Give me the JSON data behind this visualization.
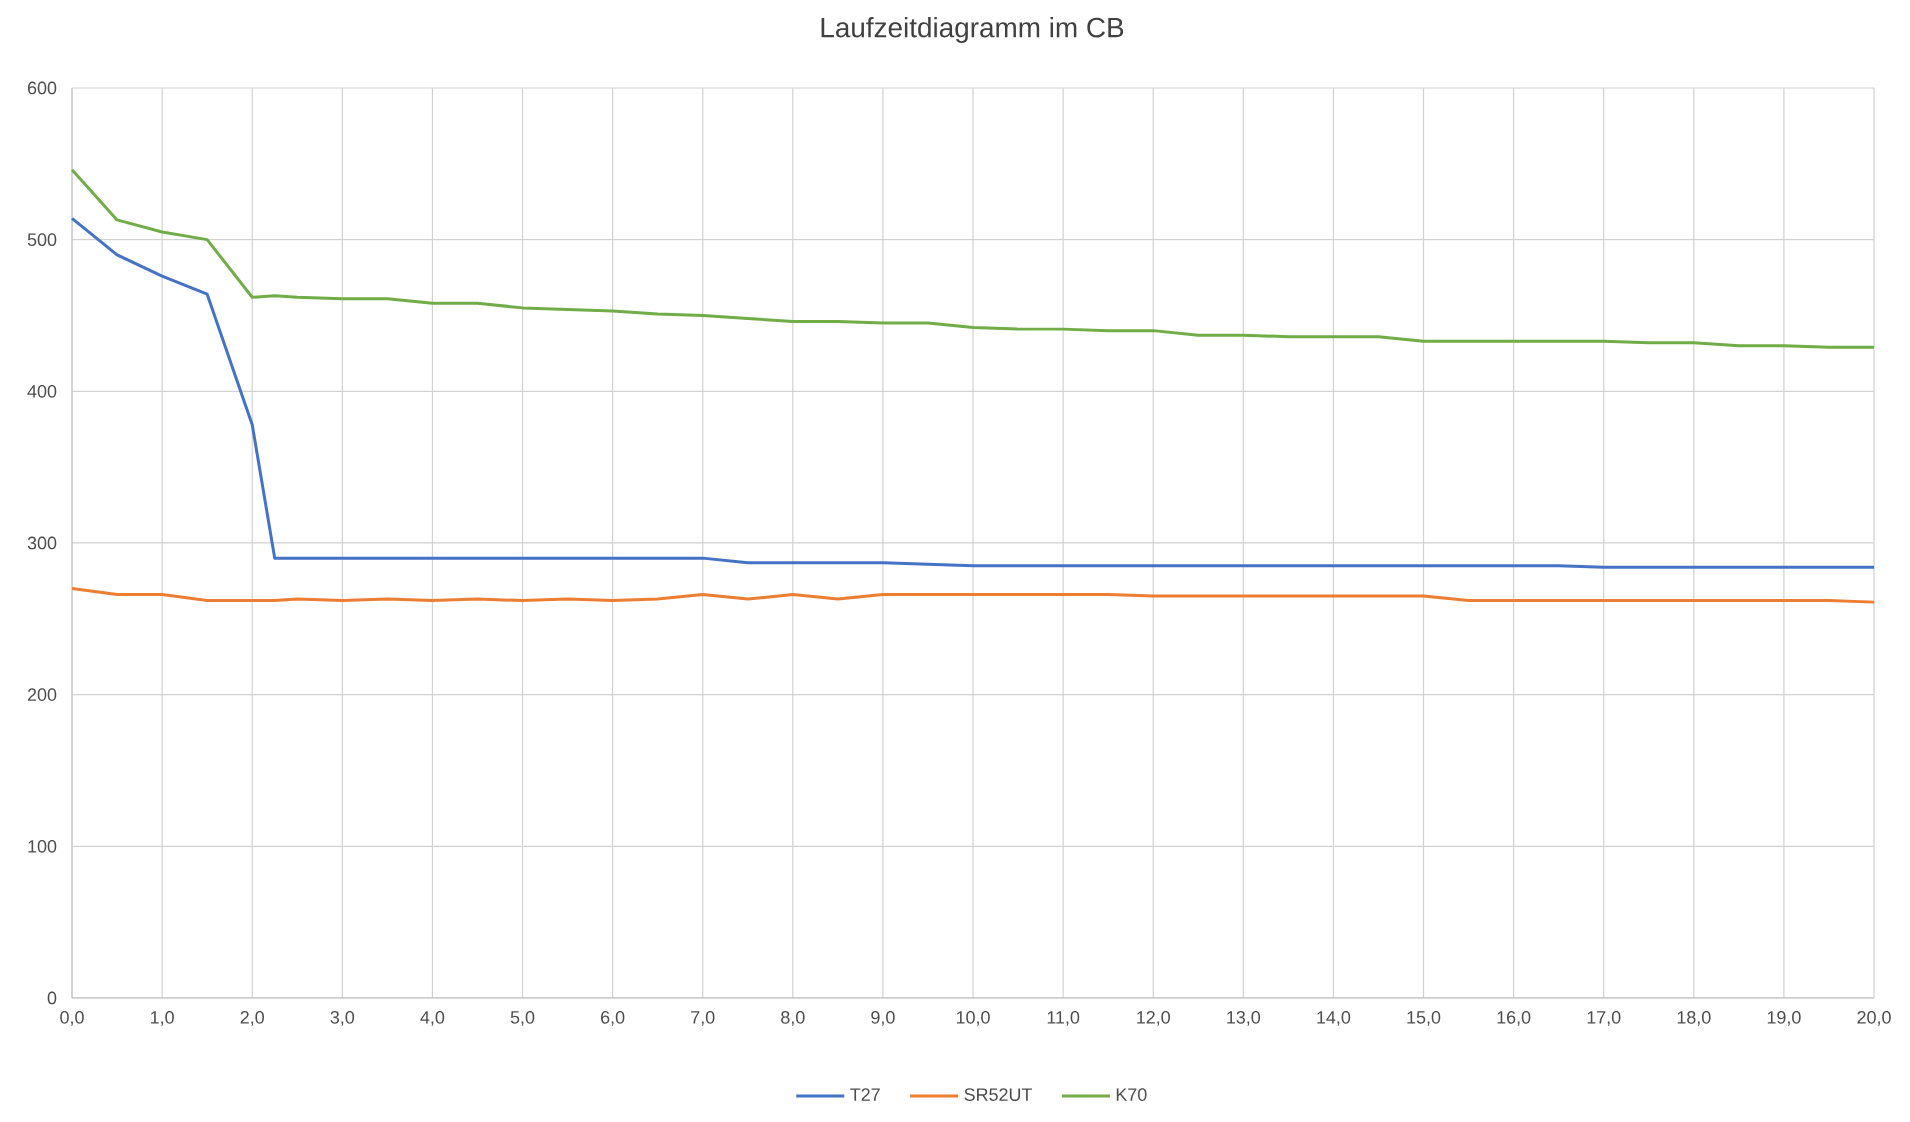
{
  "chart_data": {
    "type": "line",
    "title": "Laufzeitdiagramm im CB",
    "x": [
      0,
      0.5,
      1,
      1.5,
      2,
      2.25,
      2.5,
      3,
      3.5,
      4,
      4.5,
      5,
      5.5,
      6,
      6.5,
      7,
      7.5,
      8,
      8.5,
      9,
      9.5,
      10,
      10.5,
      11,
      11.5,
      12,
      12.5,
      13,
      13.5,
      14,
      14.5,
      15,
      15.5,
      16,
      16.5,
      17,
      17.5,
      18,
      18.5,
      19,
      19.5,
      20
    ],
    "series": [
      {
        "name": "T27",
        "color": "#4472c4",
        "values": [
          514,
          490,
          476,
          464,
          378,
          290,
          290,
          290,
          290,
          290,
          290,
          290,
          290,
          290,
          290,
          290,
          287,
          287,
          287,
          287,
          286,
          285,
          285,
          285,
          285,
          285,
          285,
          285,
          285,
          285,
          285,
          285,
          285,
          285,
          285,
          284,
          284,
          284,
          284,
          284,
          284,
          284
        ]
      },
      {
        "name": "SR52UT",
        "color": "#ed7d31",
        "values": [
          270,
          266,
          266,
          262,
          262,
          262,
          263,
          262,
          263,
          262,
          263,
          262,
          263,
          262,
          263,
          266,
          263,
          266,
          263,
          266,
          266,
          266,
          266,
          266,
          266,
          265,
          265,
          265,
          265,
          265,
          265,
          265,
          262,
          262,
          262,
          262,
          262,
          262,
          262,
          262,
          262,
          261
        ]
      },
      {
        "name": "K70",
        "color": "#70ad47",
        "values": [
          546,
          513,
          505,
          500,
          462,
          463,
          462,
          461,
          461,
          458,
          458,
          455,
          454,
          453,
          451,
          450,
          448,
          446,
          446,
          445,
          445,
          442,
          441,
          441,
          440,
          440,
          437,
          437,
          436,
          436,
          436,
          433,
          433,
          433,
          433,
          433,
          432,
          432,
          430,
          430,
          429,
          429
        ]
      }
    ],
    "xlim": [
      0,
      20
    ],
    "xticks": [
      {
        "value": 0,
        "label": "0,0"
      },
      {
        "value": 1,
        "label": "1,0"
      },
      {
        "value": 2,
        "label": "2,0"
      },
      {
        "value": 3,
        "label": "3,0"
      },
      {
        "value": 4,
        "label": "4,0"
      },
      {
        "value": 5,
        "label": "5,0"
      },
      {
        "value": 6,
        "label": "6,0"
      },
      {
        "value": 7,
        "label": "7,0"
      },
      {
        "value": 8,
        "label": "8,0"
      },
      {
        "value": 9,
        "label": "9,0"
      },
      {
        "value": 10,
        "label": "10,0"
      },
      {
        "value": 11,
        "label": "11,0"
      },
      {
        "value": 12,
        "label": "12,0"
      },
      {
        "value": 13,
        "label": "13,0"
      },
      {
        "value": 14,
        "label": "14,0"
      },
      {
        "value": 15,
        "label": "15,0"
      },
      {
        "value": 16,
        "label": "16,0"
      },
      {
        "value": 17,
        "label": "17,0"
      },
      {
        "value": 18,
        "label": "18,0"
      },
      {
        "value": 19,
        "label": "19,0"
      },
      {
        "value": 20,
        "label": "20,0"
      }
    ],
    "ylim": [
      0,
      600
    ],
    "yticks": [
      0,
      100,
      200,
      300,
      400,
      500,
      600
    ],
    "grid": true,
    "legend": "bottom",
    "marker": "none",
    "line_style": "solid"
  }
}
